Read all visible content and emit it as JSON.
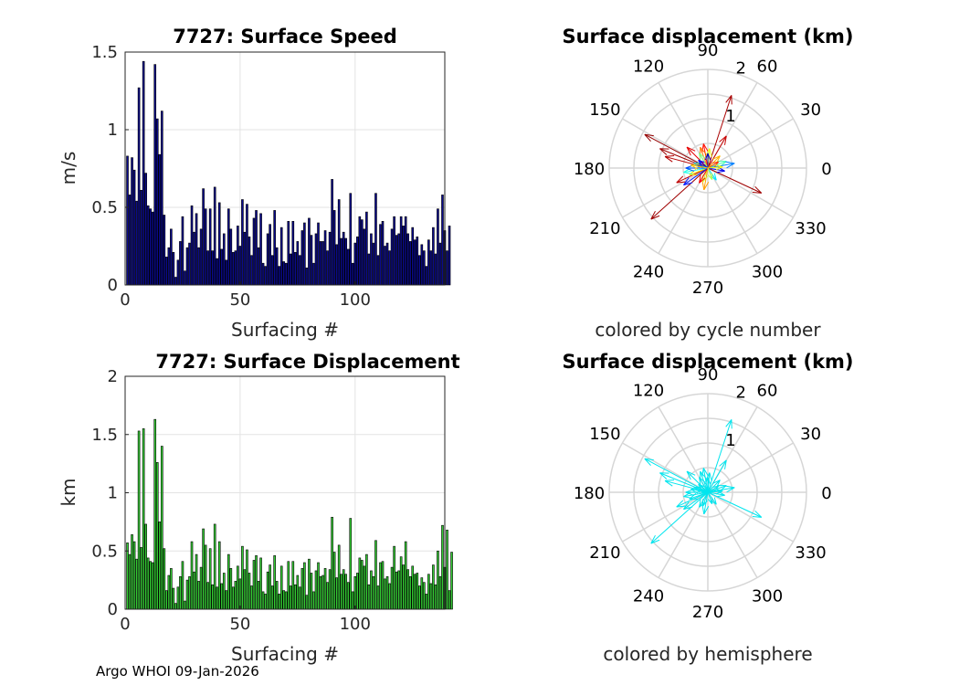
{
  "footer": "Argo WHOI 09-Jan-2026",
  "chart_data": [
    {
      "type": "bar",
      "title": "7727: Surface Speed",
      "xlabel": "Surfacing #",
      "ylabel": "m/s",
      "xlim": [
        0,
        139
      ],
      "ylim": [
        0,
        1.5
      ],
      "xticks": [
        0,
        50,
        100
      ],
      "yticks": [
        0,
        0.5,
        1,
        1.5
      ],
      "ytick_labels": [
        "0",
        "0.5",
        "1",
        "1.5"
      ],
      "grid": true,
      "bar_color": "#0a0a8c",
      "values": [
        0.83,
        0.58,
        0.82,
        0.74,
        0.54,
        1.27,
        0.61,
        1.44,
        0.72,
        0.51,
        0.49,
        0.47,
        1.42,
        1.07,
        0.84,
        1.12,
        0.45,
        0.18,
        0.24,
        0.36,
        0.21,
        0.05,
        0.16,
        0.28,
        0.44,
        0.09,
        0.24,
        0.27,
        0.51,
        0.34,
        0.46,
        0.24,
        0.36,
        0.62,
        0.49,
        0.22,
        0.49,
        0.22,
        0.63,
        0.17,
        0.53,
        0.23,
        0.33,
        0.16,
        0.49,
        0.36,
        0.21,
        0.22,
        0.38,
        0.25,
        0.55,
        0.34,
        0.52,
        0.31,
        0.19,
        0.43,
        0.48,
        0.24,
        0.46,
        0.14,
        0.12,
        0.33,
        0.39,
        0.19,
        0.48,
        0.24,
        0.12,
        0.37,
        0.15,
        0.14,
        0.41,
        0.2,
        0.41,
        0.21,
        0.28,
        0.19,
        0.35,
        0.4,
        0.11,
        0.43,
        0.32,
        0.14,
        0.33,
        0.4,
        0.28,
        0.28,
        0.35,
        0.22,
        0.34,
        0.68,
        0.48,
        0.26,
        0.55,
        0.3,
        0.34,
        0.3,
        0.23,
        0.59,
        0.14,
        0.27,
        0.31,
        0.44,
        0.42,
        0.36,
        0.47,
        0.2,
        0.33,
        0.27,
        0.59,
        0.19,
        0.39,
        0.41,
        0.25,
        0.27,
        0.22,
        0.36,
        0.44,
        0.32,
        0.33,
        0.44,
        0.38,
        0.44,
        0.33,
        0.28,
        0.37,
        0.29,
        0.31,
        0.19,
        0.26,
        0.22,
        0.12,
        0.29,
        0.22,
        0.37,
        0.2,
        0.49,
        0.27,
        0.58,
        0.35,
        0.22,
        0.38
      ]
    },
    {
      "type": "bar",
      "title": "7727: Surface Displacement",
      "xlabel": "Surfacing #",
      "ylabel": "km",
      "xlim": [
        0,
        139
      ],
      "ylim": [
        0,
        2
      ],
      "xticks": [
        0,
        50,
        100
      ],
      "yticks": [
        0,
        0.5,
        1,
        1.5,
        2
      ],
      "ytick_labels": [
        "0",
        "0.5",
        "1",
        "1.5",
        "2"
      ],
      "grid": true,
      "bar_color": "#33cc33",
      "values": [
        0.57,
        0.47,
        0.64,
        0.58,
        0.43,
        1.53,
        0.53,
        1.55,
        0.73,
        0.44,
        0.41,
        0.4,
        1.63,
        1.26,
        0.75,
        1.4,
        0.52,
        0.16,
        0.29,
        0.35,
        0.18,
        0.05,
        0.19,
        0.28,
        0.41,
        0.07,
        0.25,
        0.28,
        0.58,
        0.32,
        0.47,
        0.24,
        0.36,
        0.69,
        0.55,
        0.23,
        0.52,
        0.21,
        0.73,
        0.19,
        0.58,
        0.22,
        0.31,
        0.16,
        0.47,
        0.35,
        0.19,
        0.24,
        0.37,
        0.26,
        0.54,
        0.34,
        0.51,
        0.31,
        0.2,
        0.42,
        0.46,
        0.24,
        0.44,
        0.15,
        0.13,
        0.32,
        0.38,
        0.2,
        0.46,
        0.24,
        0.13,
        0.37,
        0.16,
        0.15,
        0.41,
        0.2,
        0.41,
        0.21,
        0.29,
        0.19,
        0.35,
        0.4,
        0.12,
        0.43,
        0.31,
        0.15,
        0.33,
        0.4,
        0.28,
        0.29,
        0.35,
        0.23,
        0.34,
        0.79,
        0.49,
        0.27,
        0.55,
        0.3,
        0.34,
        0.3,
        0.23,
        0.78,
        0.15,
        0.28,
        0.31,
        0.44,
        0.42,
        0.37,
        0.47,
        0.21,
        0.33,
        0.28,
        0.59,
        0.2,
        0.4,
        0.41,
        0.26,
        0.28,
        0.22,
        0.36,
        0.54,
        0.32,
        0.33,
        0.45,
        0.38,
        0.58,
        0.34,
        0.28,
        0.37,
        0.3,
        0.31,
        0.2,
        0.27,
        0.23,
        0.13,
        0.3,
        0.22,
        0.38,
        0.21,
        0.5,
        0.28,
        0.72,
        0.36,
        0.68,
        0.16,
        0.49
      ]
    },
    {
      "type": "polar-quiver",
      "title": "Surface displacement (km)",
      "xlabel": "colored by cycle number",
      "rlim": [
        0,
        2
      ],
      "r_tick_labels": [
        "1",
        "2"
      ],
      "theta_tick_labels": [
        "0",
        "30",
        "60",
        "90",
        "120",
        "150",
        "180",
        "210",
        "240",
        "270",
        "300",
        "330"
      ],
      "color_mode": "cycle",
      "colormap": [
        "#00008f",
        "#0000ff",
        "#0080ff",
        "#00ffff",
        "#80ff80",
        "#ffff00",
        "#ff8000",
        "#ff0000",
        "#800000"
      ],
      "arrows": [
        {
          "angle": 72,
          "magnitude": 1.55,
          "cycle": 0.96
        },
        {
          "angle": 152,
          "magnitude": 1.45,
          "cycle": 0.98
        },
        {
          "angle": 158,
          "magnitude": 1.05,
          "cycle": 0.97
        },
        {
          "angle": 165,
          "magnitude": 0.9,
          "cycle": 0.95
        },
        {
          "angle": 222,
          "magnitude": 1.55,
          "cycle": 0.97
        },
        {
          "angle": 205,
          "magnitude": 0.7,
          "cycle": 0.94
        },
        {
          "angle": 335,
          "magnitude": 1.2,
          "cycle": 0.97
        },
        {
          "angle": 60,
          "magnitude": 0.75,
          "cycle": 0.93
        },
        {
          "angle": 135,
          "magnitude": 0.6,
          "cycle": 0.9
        },
        {
          "angle": 100,
          "magnitude": 0.5,
          "cycle": 0.86
        },
        {
          "angle": 110,
          "magnitude": 0.45,
          "cycle": 0.76
        },
        {
          "angle": 45,
          "magnitude": 0.35,
          "cycle": 0.7
        },
        {
          "angle": 260,
          "magnitude": 0.45,
          "cycle": 0.72
        },
        {
          "angle": 200,
          "magnitude": 0.4,
          "cycle": 0.65
        },
        {
          "angle": 85,
          "magnitude": 0.4,
          "cycle": 0.6
        },
        {
          "angle": 250,
          "magnitude": 0.3,
          "cycle": 0.58
        },
        {
          "angle": 20,
          "magnitude": 0.4,
          "cycle": 0.45
        },
        {
          "angle": 190,
          "magnitude": 0.5,
          "cycle": 0.4
        },
        {
          "angle": 120,
          "magnitude": 0.35,
          "cycle": 0.5
        },
        {
          "angle": 305,
          "magnitude": 0.3,
          "cycle": 0.35
        },
        {
          "angle": 10,
          "magnitude": 0.55,
          "cycle": 0.25
        },
        {
          "angle": 180,
          "magnitude": 0.45,
          "cycle": 0.2
        },
        {
          "angle": 215,
          "magnitude": 0.6,
          "cycle": 0.15
        },
        {
          "angle": 350,
          "magnitude": 0.35,
          "cycle": 0.1
        },
        {
          "angle": 90,
          "magnitude": 0.3,
          "cycle": 0.05
        },
        {
          "angle": 160,
          "magnitude": 0.3,
          "cycle": 0.3
        },
        {
          "angle": 30,
          "magnitude": 0.25,
          "cycle": 0.82
        },
        {
          "angle": 240,
          "magnitude": 0.35,
          "cycle": 0.88
        },
        {
          "angle": 140,
          "magnitude": 0.25,
          "cycle": 0.12
        },
        {
          "angle": 290,
          "magnitude": 0.25,
          "cycle": 0.55
        },
        {
          "angle": 5,
          "magnitude": 0.3,
          "cycle": 0.62
        },
        {
          "angle": 170,
          "magnitude": 0.35,
          "cycle": 0.68
        }
      ]
    },
    {
      "type": "polar-quiver",
      "title": "Surface displacement (km)",
      "xlabel": "colored by hemisphere",
      "rlim": [
        0,
        2
      ],
      "r_tick_labels": [
        "1",
        "2"
      ],
      "theta_tick_labels": [
        "0",
        "30",
        "60",
        "90",
        "120",
        "150",
        "180",
        "210",
        "240",
        "270",
        "300",
        "330"
      ],
      "color_mode": "hemisphere",
      "arrow_color": "#00e5ee",
      "arrows": [
        {
          "angle": 72,
          "magnitude": 1.55
        },
        {
          "angle": 152,
          "magnitude": 1.45
        },
        {
          "angle": 158,
          "magnitude": 1.05
        },
        {
          "angle": 165,
          "magnitude": 0.9
        },
        {
          "angle": 222,
          "magnitude": 1.55
        },
        {
          "angle": 205,
          "magnitude": 0.7
        },
        {
          "angle": 335,
          "magnitude": 1.2
        },
        {
          "angle": 60,
          "magnitude": 0.75
        },
        {
          "angle": 135,
          "magnitude": 0.6
        },
        {
          "angle": 100,
          "magnitude": 0.5
        },
        {
          "angle": 110,
          "magnitude": 0.45
        },
        {
          "angle": 45,
          "magnitude": 0.35
        },
        {
          "angle": 260,
          "magnitude": 0.45
        },
        {
          "angle": 200,
          "magnitude": 0.4
        },
        {
          "angle": 85,
          "magnitude": 0.4
        },
        {
          "angle": 250,
          "magnitude": 0.3
        },
        {
          "angle": 20,
          "magnitude": 0.4
        },
        {
          "angle": 190,
          "magnitude": 0.5
        },
        {
          "angle": 120,
          "magnitude": 0.35
        },
        {
          "angle": 305,
          "magnitude": 0.3
        },
        {
          "angle": 10,
          "magnitude": 0.55
        },
        {
          "angle": 180,
          "magnitude": 0.45
        },
        {
          "angle": 215,
          "magnitude": 0.6
        },
        {
          "angle": 350,
          "magnitude": 0.35
        },
        {
          "angle": 90,
          "magnitude": 0.3
        },
        {
          "angle": 160,
          "magnitude": 0.3
        },
        {
          "angle": 30,
          "magnitude": 0.25
        },
        {
          "angle": 240,
          "magnitude": 0.35
        },
        {
          "angle": 140,
          "magnitude": 0.25
        },
        {
          "angle": 290,
          "magnitude": 0.25
        },
        {
          "angle": 5,
          "magnitude": 0.3
        },
        {
          "angle": 170,
          "magnitude": 0.35
        }
      ]
    }
  ]
}
